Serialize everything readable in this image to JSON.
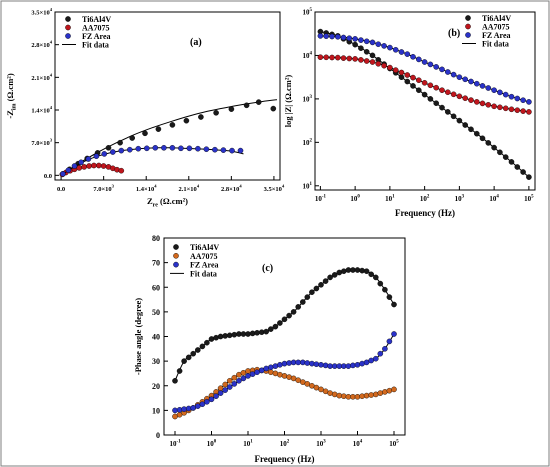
{
  "chart_data": [
    {
      "id": "a",
      "type": "scatter",
      "panel_label": "(a)",
      "xlabel_main": "Z",
      "xlabel_sub": "re",
      "xlabel_unit": " (Ω.cm²)",
      "ylabel_main": "-Z",
      "ylabel_sub": "im",
      "ylabel_unit": " (Ω.cm²)",
      "xlim": [
        -1000,
        36000
      ],
      "ylim": [
        -1000,
        35000
      ],
      "xticks": [
        {
          "v": 0,
          "m": "0.0",
          "e": ""
        },
        {
          "v": 7000,
          "m": "7.0×10",
          "e": "3"
        },
        {
          "v": 14000,
          "m": "1.4×10",
          "e": "4"
        },
        {
          "v": 21000,
          "m": "2.1×10",
          "e": "4"
        },
        {
          "v": 28000,
          "m": "2.8×10",
          "e": "4"
        },
        {
          "v": 35000,
          "m": "3.5×10",
          "e": "4"
        }
      ],
      "yticks": [
        {
          "v": 0,
          "m": "0.0",
          "e": ""
        },
        {
          "v": 7000,
          "m": "7.0×10",
          "e": "3"
        },
        {
          "v": 14000,
          "m": "1.4×10",
          "e": "4"
        },
        {
          "v": 21000,
          "m": "2.1×10",
          "e": "4"
        },
        {
          "v": 28000,
          "m": "2.8×10",
          "e": "4"
        },
        {
          "v": 35000,
          "m": "3.5×10",
          "e": "4"
        }
      ],
      "legend": [
        "Ti6Al4V",
        "AA7075",
        "FZ Area",
        "Fit data"
      ],
      "series": [
        {
          "name": "Ti6Al4V",
          "color": "#1a1a1a",
          "x": [
            300,
            1400,
            2800,
            4300,
            6000,
            7800,
            9700,
            11700,
            13800,
            16000,
            18300,
            20600,
            23000,
            25500,
            28000,
            30500,
            32500,
            34900
          ],
          "y": [
            300,
            1300,
            2500,
            3600,
            4800,
            5900,
            7000,
            8000,
            9000,
            9900,
            10800,
            11700,
            12500,
            13400,
            14200,
            15000,
            15700,
            14300
          ],
          "fit_x": [
            0,
            3000,
            6000,
            9000,
            12000,
            15000,
            18000,
            21000,
            24000,
            27000,
            30000,
            33000,
            35500
          ],
          "fit_y": [
            0,
            2600,
            4900,
            6900,
            8700,
            10200,
            11500,
            12700,
            13700,
            14500,
            15200,
            15800,
            16200
          ]
        },
        {
          "name": "AA7075",
          "color": "#c0161d",
          "x": [
            200,
            800,
            1500,
            2200,
            3000,
            3800,
            4600,
            5400,
            6200,
            7000,
            7800,
            8500,
            9200,
            9900
          ],
          "y": [
            200,
            600,
            1000,
            1300,
            1600,
            1800,
            2000,
            2100,
            2100,
            2000,
            1800,
            1500,
            1200,
            1000
          ],
          "fit_x": [
            0,
            1500,
            3000,
            4500,
            6000,
            7500,
            9000,
            10200
          ],
          "fit_y": [
            0,
            900,
            1500,
            1900,
            2100,
            2000,
            1500,
            800
          ]
        },
        {
          "name": "FZ Area",
          "color": "#2a32c8",
          "x": [
            300,
            1200,
            2200,
            3300,
            4500,
            5800,
            7100,
            8500,
            9900,
            11300,
            12700,
            14100,
            15500,
            16900,
            18300,
            19700,
            21100,
            22500,
            23900,
            25300,
            26700,
            28100,
            29500
          ],
          "y": [
            300,
            1100,
            2000,
            2800,
            3500,
            4100,
            4600,
            5000,
            5300,
            5500,
            5700,
            5800,
            5900,
            5900,
            5900,
            5800,
            5800,
            5700,
            5600,
            5500,
            5400,
            5300,
            5300
          ],
          "fit_x": [
            0,
            2000,
            4000,
            6000,
            8000,
            10000,
            12000,
            14000,
            16000,
            18000,
            20000,
            22000,
            24000,
            26000,
            28000,
            30000
          ],
          "fit_y": [
            0,
            1700,
            3100,
            4100,
            4800,
            5300,
            5600,
            5800,
            5900,
            5900,
            5800,
            5700,
            5600,
            5400,
            5200,
            4600
          ]
        }
      ]
    },
    {
      "id": "b",
      "type": "line",
      "panel_label": "(b)",
      "xlabel": "Frequency (Hz)",
      "ylabel": "log |Z| (Ω.cm²)",
      "x_scale": "log",
      "y_scale": "log",
      "xlim": [
        0.07,
        150000
      ],
      "ylim": [
        8,
        100000
      ],
      "xticks": [
        {
          "v": 0.1,
          "m": "10",
          "e": "-1"
        },
        {
          "v": 1,
          "m": "10",
          "e": "0"
        },
        {
          "v": 10,
          "m": "10",
          "e": "1"
        },
        {
          "v": 100,
          "m": "10",
          "e": "2"
        },
        {
          "v": 1000,
          "m": "10",
          "e": "3"
        },
        {
          "v": 10000,
          "m": "10",
          "e": "4"
        },
        {
          "v": 100000,
          "m": "10",
          "e": "5"
        }
      ],
      "yticks": [
        {
          "v": 10,
          "m": "10",
          "e": "1"
        },
        {
          "v": 100,
          "m": "10",
          "e": "2"
        },
        {
          "v": 1000,
          "m": "10",
          "e": "3"
        },
        {
          "v": 10000,
          "m": "10",
          "e": "4"
        },
        {
          "v": 100000,
          "m": "10",
          "e": "5"
        }
      ],
      "legend": [
        "Ti6Al4V",
        "AA7075",
        "FZ Area",
        "Fit data"
      ],
      "series": [
        {
          "name": "Ti6Al4V",
          "color": "#1a1a1a",
          "logx": [
            -1,
            -0.5,
            0,
            0.5,
            1,
            1.5,
            2,
            2.5,
            3,
            3.5,
            4,
            4.5,
            5
          ],
          "logy": [
            4.55,
            4.45,
            4.25,
            4.0,
            3.7,
            3.4,
            3.1,
            2.8,
            2.5,
            2.2,
            1.88,
            1.55,
            1.2
          ]
        },
        {
          "name": "AA7075",
          "color": "#c0161d",
          "logx": [
            -1,
            -0.5,
            0,
            0.5,
            1,
            1.5,
            2,
            2.5,
            3,
            3.5,
            4,
            4.5,
            5
          ],
          "logy": [
            3.96,
            3.95,
            3.92,
            3.85,
            3.72,
            3.55,
            3.37,
            3.2,
            3.06,
            2.93,
            2.83,
            2.76,
            2.7
          ]
        },
        {
          "name": "FZ Area",
          "color": "#2a32c8",
          "logx": [
            -1,
            -0.5,
            0,
            0.5,
            1,
            1.5,
            2,
            2.5,
            3,
            3.5,
            4,
            4.5,
            5
          ],
          "logy": [
            4.45,
            4.43,
            4.38,
            4.3,
            4.18,
            4.03,
            3.85,
            3.68,
            3.5,
            3.35,
            3.2,
            3.05,
            2.93
          ]
        }
      ]
    },
    {
      "id": "c",
      "type": "line",
      "panel_label": "(c)",
      "xlabel": "Frequency (Hz)",
      "ylabel": "-Phase angle (degree)",
      "x_scale": "log",
      "xlim": [
        0.05,
        200000
      ],
      "ylim": [
        0,
        80
      ],
      "xticks": [
        {
          "v": 0.1,
          "m": "10",
          "e": "-1"
        },
        {
          "v": 1,
          "m": "10",
          "e": "0"
        },
        {
          "v": 10,
          "m": "10",
          "e": "1"
        },
        {
          "v": 100,
          "m": "10",
          "e": "2"
        },
        {
          "v": 1000,
          "m": "10",
          "e": "3"
        },
        {
          "v": 10000,
          "m": "10",
          "e": "4"
        },
        {
          "v": 100000,
          "m": "10",
          "e": "5"
        }
      ],
      "yticks": [
        0,
        10,
        20,
        30,
        40,
        50,
        60,
        70,
        80
      ],
      "legend": [
        "Ti6Al4V",
        "AA7075",
        "FZ Area",
        "Fit data"
      ],
      "series": [
        {
          "name": "Ti6Al4V",
          "color": "#1a1a1a",
          "logx": [
            -1,
            -0.75,
            -0.5,
            -0.25,
            0,
            0.25,
            0.5,
            0.75,
            1,
            1.25,
            1.5,
            1.75,
            2,
            2.25,
            2.5,
            2.75,
            3,
            3.25,
            3.5,
            3.75,
            4,
            4.25,
            4.5,
            4.75,
            5
          ],
          "y": [
            22,
            30,
            33,
            36,
            39,
            40,
            40.5,
            41,
            41,
            41.5,
            42,
            44,
            47,
            50,
            54,
            58,
            61,
            64,
            66,
            67,
            67,
            66.5,
            64,
            59,
            53
          ]
        },
        {
          "name": "AA7075",
          "color": "#d2691e",
          "logx": [
            -1,
            -0.75,
            -0.5,
            -0.25,
            0,
            0.25,
            0.5,
            0.75,
            1,
            1.25,
            1.5,
            1.75,
            2,
            2.25,
            2.5,
            2.75,
            3,
            3.25,
            3.5,
            3.75,
            4,
            4.25,
            4.5,
            4.75,
            5
          ],
          "y": [
            7.5,
            9,
            11,
            13.5,
            16,
            19,
            22,
            24.5,
            26,
            26.5,
            26,
            25,
            24,
            23,
            21.5,
            20,
            18.5,
            17,
            16,
            15.5,
            15.5,
            16,
            16.5,
            17.5,
            18.5
          ]
        },
        {
          "name": "FZ Area",
          "color": "#2a32c8",
          "logx": [
            -1,
            -0.75,
            -0.5,
            -0.25,
            0,
            0.25,
            0.5,
            0.75,
            1,
            1.25,
            1.5,
            1.75,
            2,
            2.25,
            2.5,
            2.75,
            3,
            3.25,
            3.5,
            3.75,
            4,
            4.25,
            4.5,
            4.75,
            5
          ],
          "y": [
            10,
            10.5,
            11,
            12.5,
            14.5,
            17,
            19.5,
            22,
            24,
            25.5,
            27,
            28,
            29,
            29.5,
            29.5,
            29,
            28.5,
            28,
            28,
            28,
            28.5,
            29.5,
            31,
            35,
            41
          ]
        }
      ]
    }
  ]
}
